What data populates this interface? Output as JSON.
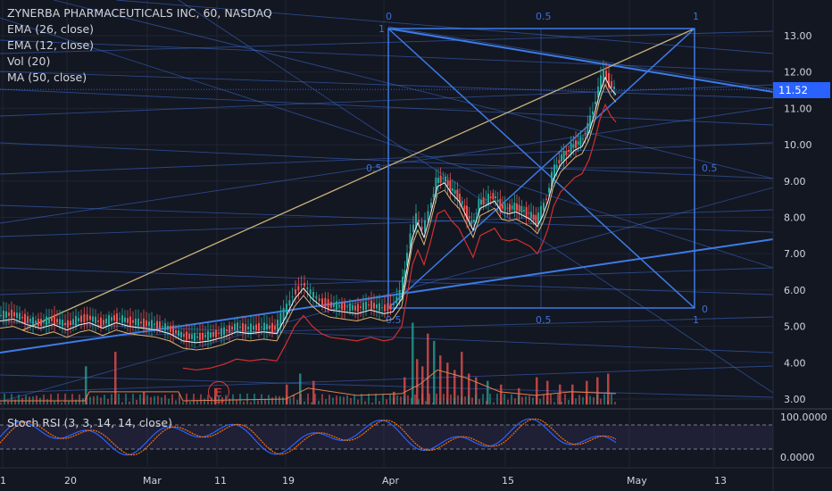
{
  "legend": {
    "title": "ZYNERBA PHARMACEUTICALS INC, 60, NASDAQ",
    "indicators": [
      "EMA (26, close)",
      "EMA (12, close)",
      "Vol (20)",
      "MA (50, close)"
    ]
  },
  "rsi_label": "Stoch RSI (3, 3, 14, 14, close)",
  "last_price": "11.52",
  "earnings_marker": "E",
  "colors": {
    "bg": "#131722",
    "up": "#26a69a",
    "down": "#ef5350",
    "fan": "#3d6fd8",
    "accent": "#2962ff"
  },
  "chart_data": {
    "type": "candlestick",
    "ylim": [
      2.75,
      13.7
    ],
    "y_ticks": [
      "13.00",
      "12.00",
      "11.00",
      "10.00",
      "9.00",
      "8.00",
      "7.00",
      "6.00",
      "5.00",
      "4.00",
      "3.00"
    ],
    "x_ticks": [
      "1",
      "20",
      "Mar",
      "11",
      "19",
      "Apr",
      "15",
      "May",
      "13"
    ],
    "rsi_ticks": [
      "100.0000",
      "0.0000"
    ],
    "fib_labels": [
      "0",
      "0.5",
      "1",
      "1",
      "0.5",
      "0.5",
      "0",
      "0.5",
      "1",
      "0.5"
    ],
    "price_path": [
      [
        0,
        5.3
      ],
      [
        15,
        5.35
      ],
      [
        30,
        5.2
      ],
      [
        45,
        5.1
      ],
      [
        60,
        5.2
      ],
      [
        75,
        5.05
      ],
      [
        90,
        5.2
      ],
      [
        100,
        5.25
      ],
      [
        115,
        5.1
      ],
      [
        130,
        5.25
      ],
      [
        145,
        5.15
      ],
      [
        160,
        5.1
      ],
      [
        175,
        5.05
      ],
      [
        190,
        4.95
      ],
      [
        205,
        4.75
      ],
      [
        220,
        4.7
      ],
      [
        235,
        4.75
      ],
      [
        250,
        4.85
      ],
      [
        265,
        5.0
      ],
      [
        280,
        4.95
      ],
      [
        295,
        5.0
      ],
      [
        310,
        4.95
      ],
      [
        320,
        5.4
      ],
      [
        330,
        5.9
      ],
      [
        340,
        6.2
      ],
      [
        350,
        5.9
      ],
      [
        360,
        5.7
      ],
      [
        370,
        5.6
      ],
      [
        385,
        5.55
      ],
      [
        400,
        5.5
      ],
      [
        415,
        5.6
      ],
      [
        430,
        5.5
      ],
      [
        440,
        5.55
      ],
      [
        450,
        5.9
      ],
      [
        455,
        6.6
      ],
      [
        462,
        7.6
      ],
      [
        468,
        8.0
      ],
      [
        475,
        7.6
      ],
      [
        482,
        8.2
      ],
      [
        490,
        9.0
      ],
      [
        498,
        9.1
      ],
      [
        506,
        8.8
      ],
      [
        514,
        8.6
      ],
      [
        522,
        8.2
      ],
      [
        530,
        7.8
      ],
      [
        538,
        8.4
      ],
      [
        546,
        8.5
      ],
      [
        554,
        8.6
      ],
      [
        562,
        8.3
      ],
      [
        570,
        8.25
      ],
      [
        578,
        8.3
      ],
      [
        586,
        8.2
      ],
      [
        594,
        8.1
      ],
      [
        602,
        7.9
      ],
      [
        608,
        8.2
      ],
      [
        614,
        8.6
      ],
      [
        620,
        9.2
      ],
      [
        628,
        9.6
      ],
      [
        636,
        9.8
      ],
      [
        644,
        10.0
      ],
      [
        652,
        10.1
      ],
      [
        660,
        10.5
      ],
      [
        666,
        11.0
      ],
      [
        672,
        11.6
      ],
      [
        678,
        12.0
      ],
      [
        684,
        11.7
      ],
      [
        690,
        11.52
      ]
    ],
    "volume_bars": [
      [
        95,
        3.9
      ],
      [
        128,
        4.3
      ],
      [
        160,
        3.2
      ],
      [
        240,
        3.3
      ],
      [
        320,
        3.4
      ],
      [
        335,
        3.7
      ],
      [
        350,
        3.5
      ],
      [
        440,
        3.2
      ],
      [
        452,
        3.6
      ],
      [
        461,
        5.1
      ],
      [
        466,
        4.1
      ],
      [
        472,
        3.9
      ],
      [
        478,
        4.8
      ],
      [
        485,
        4.6
      ],
      [
        492,
        4.2
      ],
      [
        500,
        4.0
      ],
      [
        508,
        3.8
      ],
      [
        516,
        4.3
      ],
      [
        524,
        3.7
      ],
      [
        532,
        3.6
      ],
      [
        545,
        3.5
      ],
      [
        560,
        3.4
      ],
      [
        580,
        3.3
      ],
      [
        600,
        3.6
      ],
      [
        612,
        3.5
      ],
      [
        626,
        3.4
      ],
      [
        640,
        3.4
      ],
      [
        656,
        3.5
      ],
      [
        668,
        3.6
      ],
      [
        680,
        3.7
      ]
    ],
    "rsi_levels": [
      80,
      20
    ]
  }
}
